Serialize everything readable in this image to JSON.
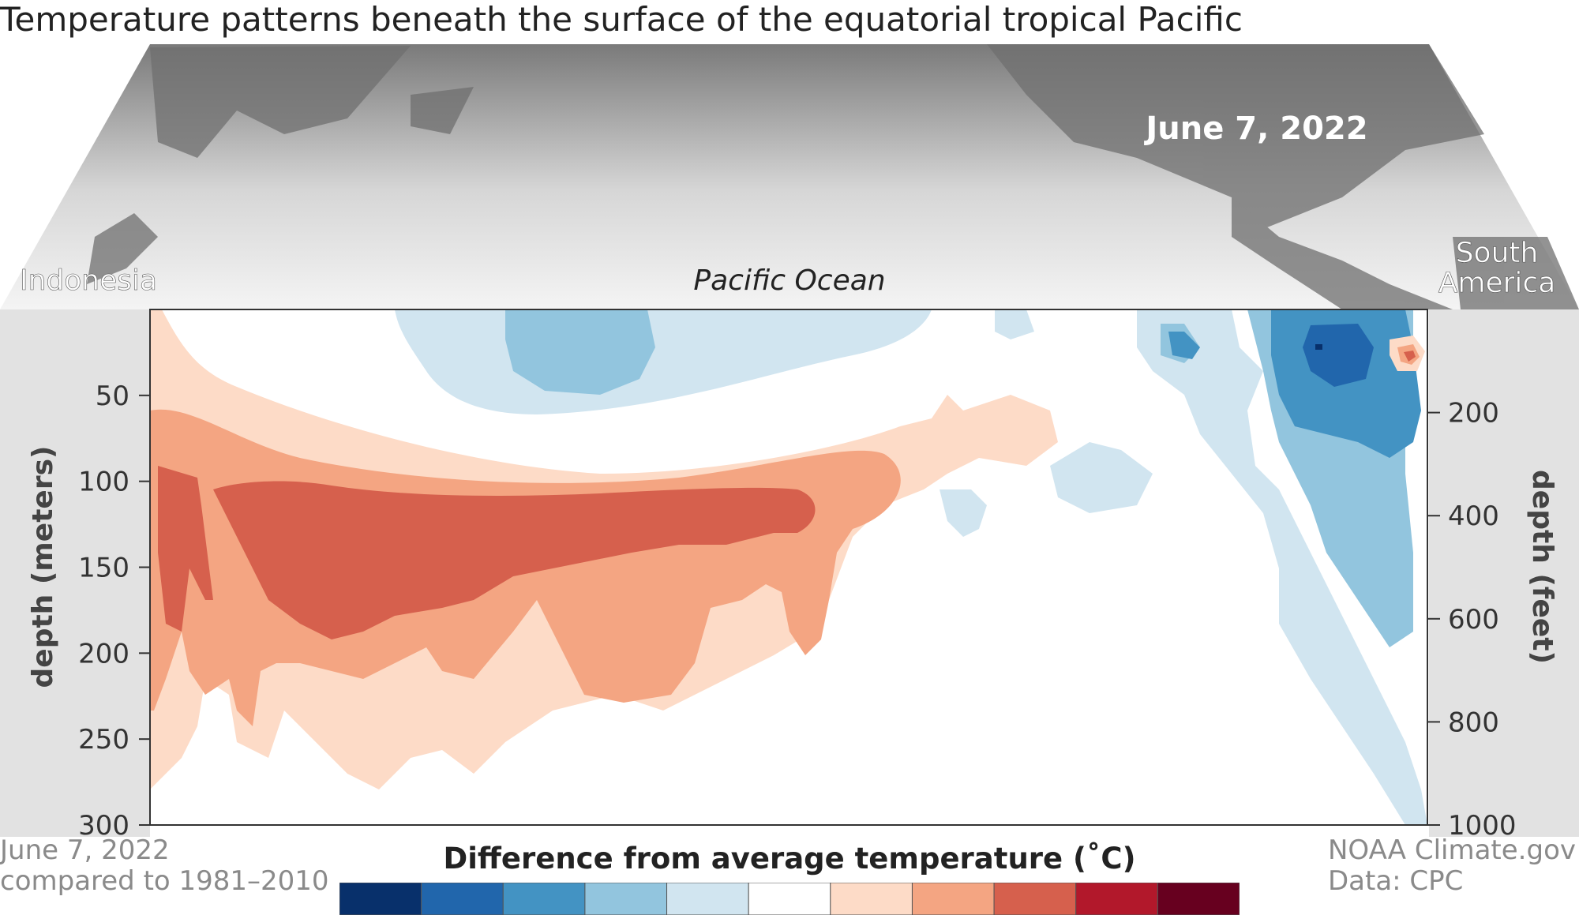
{
  "title": "Temperature patterns beneath the surface of the equatorial tropical Pacific",
  "map": {
    "date_label": "June 7, 2022",
    "left_label": "Indonesia",
    "center_label": "Pacific Ocean",
    "right_label_line1": "South",
    "right_label_line2": "America"
  },
  "footer": {
    "date_line1": "June 7, 2022",
    "date_line2": "compared to 1981–2010",
    "credit_line1": "NOAA Climate.gov",
    "credit_line2": "Data: CPC"
  },
  "legend": {
    "title": "Difference from average temperature (˚C)",
    "colors": [
      "#08306b",
      "#2166ac",
      "#4393c3",
      "#92c5de",
      "#d1e5f0",
      "#ffffff",
      "#fddbc7",
      "#f4a582",
      "#d6604d",
      "#b2182b",
      "#67001f"
    ]
  },
  "chart_data": {
    "type": "heatmap",
    "title": "Temperature patterns beneath the surface of the equatorial tropical Pacific",
    "y_left": {
      "label": "depth (meters)",
      "ticks": [
        50,
        100,
        150,
        200,
        250,
        300
      ],
      "range": [
        0,
        300
      ]
    },
    "y_right": {
      "label": "depth (feet)",
      "ticks": [
        200,
        400,
        600,
        800,
        1000
      ],
      "range": [
        0,
        1000
      ]
    },
    "x_extent": [
      "Indonesia",
      "South America"
    ],
    "date": "June 7, 2022",
    "baseline": "1981–2010",
    "colorbar_label": "Difference from average temperature (˚C)",
    "anomaly_regions": [
      {
        "sign": "warm",
        "level": 1,
        "description": "broad warm layer from western Pacific toward central Pacific, ~60-280 m"
      },
      {
        "sign": "warm",
        "level": 2,
        "description": "moderate warm core, ~80-250 m west-central"
      },
      {
        "sign": "warm",
        "level": 3,
        "description": "strongest warm core, ~100-190 m west-central"
      },
      {
        "sign": "cool",
        "level": 1,
        "description": "near-surface cool water central Pacific, 0-60 m"
      },
      {
        "sign": "cool",
        "level": 2,
        "description": "cool water central near-surface, 0-50 m"
      },
      {
        "sign": "cool",
        "level": 3,
        "description": "cool water eastern Pacific, 0-200 m"
      },
      {
        "sign": "cool",
        "level": 4,
        "description": "strongest cool patch far east, 10-40 m"
      },
      {
        "sign": "warm",
        "level": 3,
        "description": "small warm spot at far eastern surface"
      }
    ]
  }
}
